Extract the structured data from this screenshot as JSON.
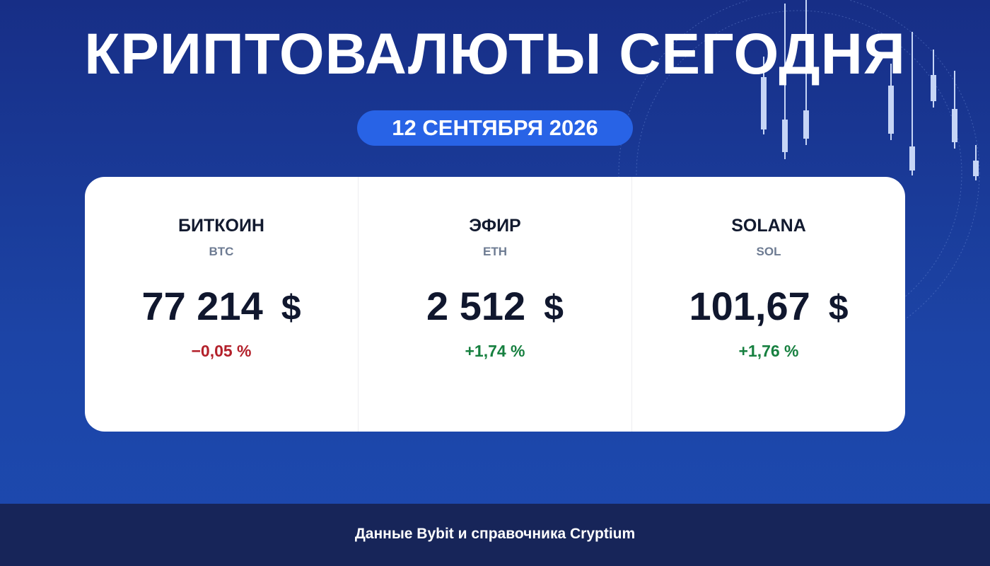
{
  "header": {
    "title": "КРИПТОВАЛЮТЫ СЕГОДНЯ",
    "date": "12 СЕНТЯБРЯ 2026"
  },
  "cards": [
    {
      "name": "БИТКОИН",
      "ticker": "BTC",
      "price": "77 214",
      "currency": "$",
      "change": "−0,05 %",
      "change_color": "#b3202a"
    },
    {
      "name": "ЭФИР",
      "ticker": "ETH",
      "price": "2 512",
      "currency": "$",
      "change": "+1,74 %",
      "change_color": "#178040"
    },
    {
      "name": "SOLANA",
      "ticker": "SOL",
      "price": "101,67",
      "currency": "$",
      "change": "+1,76 %",
      "change_color": "#178040"
    }
  ],
  "footer": {
    "source": "Данные Bybit и справочника Cryptium"
  }
}
